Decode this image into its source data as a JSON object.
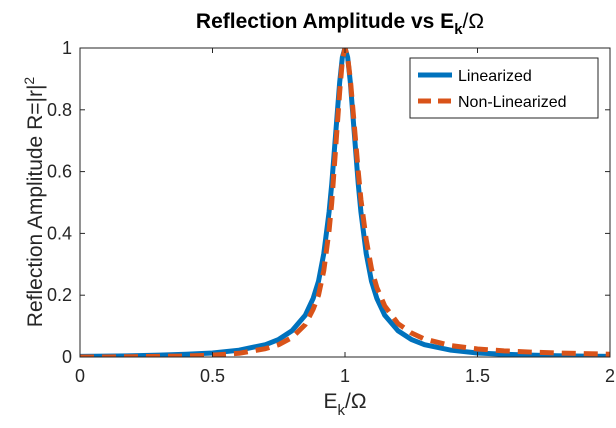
{
  "chart_data": {
    "type": "line",
    "title": "Reflection Amplitude vs E",
    "title_sub": "k",
    "title_tail": "/Ω",
    "xlabel": "E",
    "xlabel_sub": "k",
    "xlabel_tail": "/Ω",
    "ylabel": "Reflection Amplitude R=|r|",
    "ylabel_sup": "2",
    "xlim": [
      0,
      2
    ],
    "ylim": [
      0,
      1
    ],
    "xticks": [
      0,
      0.5,
      1,
      1.5,
      2
    ],
    "xtick_labels": [
      "0",
      "0.5",
      "1",
      "1.5",
      "2"
    ],
    "yticks": [
      0,
      0.2,
      0.4,
      0.6,
      0.8,
      1
    ],
    "ytick_labels": [
      "0",
      "0.2",
      "0.4",
      "0.6",
      "0.8",
      "1"
    ],
    "grid": false,
    "legend_position": "top-right",
    "series": [
      {
        "name": "Linearized",
        "color": "#0072BD",
        "style": "solid",
        "x": [
          0,
          0.1,
          0.2,
          0.3,
          0.4,
          0.5,
          0.6,
          0.7,
          0.75,
          0.8,
          0.85,
          0.88,
          0.9,
          0.92,
          0.94,
          0.95,
          0.96,
          0.97,
          0.98,
          0.99,
          1.0,
          1.01,
          1.02,
          1.03,
          1.04,
          1.05,
          1.06,
          1.08,
          1.1,
          1.12,
          1.15,
          1.2,
          1.25,
          1.3,
          1.4,
          1.5,
          1.6,
          1.7,
          1.8,
          1.9,
          2.0
        ],
        "y": [
          0.002,
          0.003,
          0.004,
          0.006,
          0.009,
          0.013,
          0.022,
          0.04,
          0.057,
          0.085,
          0.135,
          0.19,
          0.245,
          0.335,
          0.47,
          0.56,
          0.67,
          0.78,
          0.89,
          0.97,
          1.0,
          0.97,
          0.89,
          0.78,
          0.67,
          0.56,
          0.47,
          0.335,
          0.245,
          0.19,
          0.135,
          0.085,
          0.057,
          0.04,
          0.022,
          0.013,
          0.009,
          0.006,
          0.004,
          0.003,
          0.002
        ]
      },
      {
        "name": "Non-Linearized",
        "color": "#D95319",
        "style": "dashed",
        "x": [
          0,
          0.1,
          0.2,
          0.3,
          0.4,
          0.5,
          0.6,
          0.7,
          0.75,
          0.8,
          0.85,
          0.88,
          0.9,
          0.92,
          0.94,
          0.95,
          0.96,
          0.97,
          0.98,
          0.99,
          1.0,
          1.01,
          1.02,
          1.03,
          1.04,
          1.05,
          1.06,
          1.08,
          1.1,
          1.12,
          1.15,
          1.2,
          1.25,
          1.3,
          1.4,
          1.5,
          1.6,
          1.7,
          1.8,
          1.9,
          2.0
        ],
        "y": [
          0.0,
          0.0,
          0.001,
          0.002,
          0.003,
          0.006,
          0.012,
          0.027,
          0.04,
          0.063,
          0.105,
          0.155,
          0.2,
          0.28,
          0.41,
          0.5,
          0.62,
          0.74,
          0.86,
          0.96,
          1.0,
          0.97,
          0.9,
          0.8,
          0.7,
          0.6,
          0.51,
          0.38,
          0.285,
          0.225,
          0.165,
          0.108,
          0.078,
          0.058,
          0.037,
          0.026,
          0.02,
          0.016,
          0.013,
          0.011,
          0.009
        ]
      }
    ]
  }
}
